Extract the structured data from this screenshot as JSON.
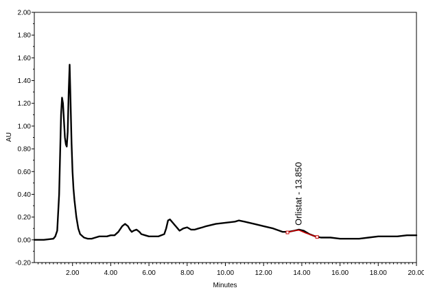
{
  "chart_data": {
    "type": "line",
    "title": "",
    "xlabel": "Minutes",
    "ylabel": "AU",
    "xlim": [
      0,
      20
    ],
    "ylim": [
      -0.2,
      2.0
    ],
    "grid": false,
    "x_ticks": [
      2,
      4,
      6,
      8,
      10,
      12,
      14,
      16,
      18,
      20
    ],
    "x_tick_labels": [
      "2.00",
      "4.00",
      "6.00",
      "8.00",
      "10.00",
      "12.00",
      "14.00",
      "16.00",
      "18.00",
      "20.00"
    ],
    "y_ticks": [
      -0.2,
      0.0,
      0.2,
      0.4,
      0.6,
      0.8,
      1.0,
      1.2,
      1.4,
      1.6,
      1.8,
      2.0
    ],
    "y_tick_labels": [
      "-0.20",
      "0.00",
      "0.20",
      "0.40",
      "0.60",
      "0.80",
      "1.00",
      "1.20",
      "1.40",
      "1.60",
      "1.80",
      "2.00"
    ],
    "series": [
      {
        "color": "#000000",
        "x": [
          0.0,
          0.5,
          1.0,
          1.1,
          1.2,
          1.3,
          1.4,
          1.45,
          1.5,
          1.55,
          1.6,
          1.65,
          1.7,
          1.75,
          1.8,
          1.85,
          1.9,
          1.95,
          2.0,
          2.05,
          2.1,
          2.2,
          2.3,
          2.4,
          2.6,
          2.8,
          3.0,
          3.2,
          3.4,
          3.5,
          3.6,
          3.8,
          4.0,
          4.2,
          4.4,
          4.6,
          4.75,
          4.9,
          5.0,
          5.1,
          5.2,
          5.35,
          5.5,
          5.6,
          5.8,
          6.0,
          6.2,
          6.5,
          6.8,
          6.9,
          7.0,
          7.1,
          7.2,
          7.3,
          7.4,
          7.5,
          7.6,
          7.8,
          8.0,
          8.2,
          8.4,
          8.6,
          8.8,
          9.0,
          9.5,
          10.0,
          10.5,
          10.7,
          11.0,
          11.5,
          12.0,
          12.5,
          13.0,
          13.3,
          13.6,
          13.85,
          14.1,
          14.4,
          14.7,
          15.0,
          15.5,
          16.0,
          16.5,
          17.0,
          17.5,
          18.0,
          18.5,
          19.0,
          19.5,
          20.0
        ],
        "y": [
          0.0,
          0.0,
          0.01,
          0.03,
          0.08,
          0.4,
          1.1,
          1.25,
          1.2,
          1.05,
          0.9,
          0.84,
          0.82,
          0.95,
          1.3,
          1.54,
          1.2,
          0.85,
          0.6,
          0.45,
          0.35,
          0.2,
          0.1,
          0.05,
          0.02,
          0.01,
          0.01,
          0.02,
          0.03,
          0.03,
          0.03,
          0.03,
          0.04,
          0.04,
          0.07,
          0.12,
          0.14,
          0.12,
          0.09,
          0.07,
          0.08,
          0.09,
          0.07,
          0.05,
          0.04,
          0.03,
          0.03,
          0.03,
          0.05,
          0.1,
          0.17,
          0.18,
          0.16,
          0.14,
          0.12,
          0.1,
          0.08,
          0.1,
          0.11,
          0.09,
          0.09,
          0.1,
          0.11,
          0.12,
          0.14,
          0.15,
          0.16,
          0.17,
          0.16,
          0.14,
          0.12,
          0.1,
          0.07,
          0.07,
          0.08,
          0.09,
          0.08,
          0.05,
          0.03,
          0.02,
          0.02,
          0.01,
          0.01,
          0.01,
          0.02,
          0.03,
          0.03,
          0.03,
          0.04,
          0.04
        ]
      },
      {
        "color": "#cc0000",
        "x": [
          13.25,
          13.6,
          13.85,
          14.2,
          14.8
        ],
        "y": [
          0.065,
          0.08,
          0.085,
          0.06,
          0.025
        ]
      }
    ],
    "annotations": [
      {
        "text": "Orlistat - 13.850",
        "x": 13.85,
        "y": 0.09
      }
    ],
    "markers": [
      {
        "x": 13.25,
        "y": 0.065,
        "color": "#cc0000"
      },
      {
        "x": 14.8,
        "y": 0.025,
        "color": "#cc0000"
      }
    ]
  }
}
